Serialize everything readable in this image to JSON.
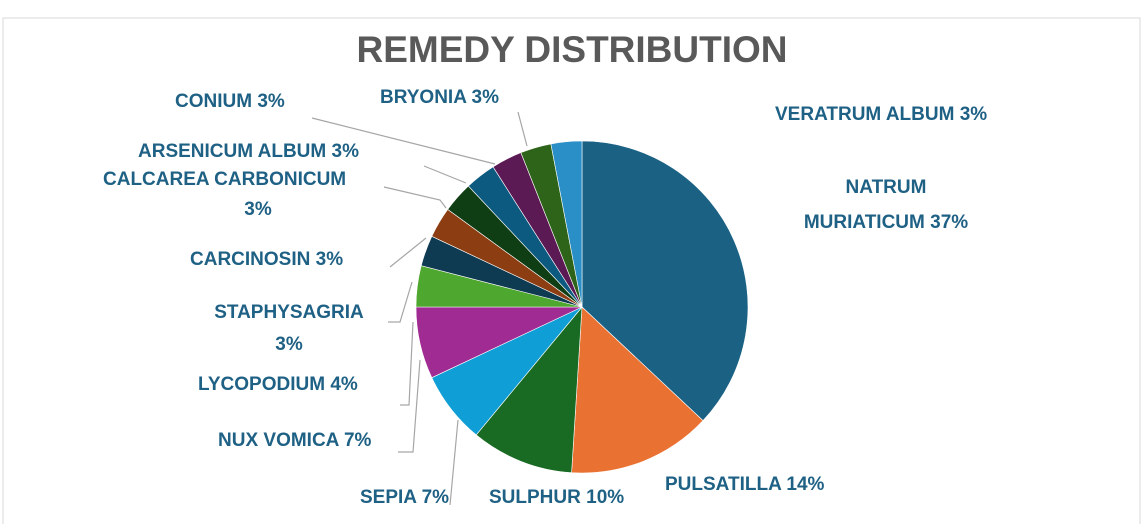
{
  "chart_data": {
    "type": "pie",
    "title": "REMEDY DISTRIBUTION",
    "categories": [
      "NATRUM MURIATICUM",
      "PULSATILLA",
      "SULPHUR",
      "SEPIA",
      "NUX VOMICA",
      "LYCOPODIUM",
      "STAPHYSAGRIA",
      "CARCINOSIN",
      "CALCAREA CARBONICUM",
      "ARSENICUM ALBUM",
      "CONIUM",
      "BRYONIA",
      "VERATRUM ALBUM"
    ],
    "values": [
      37,
      14,
      10,
      7,
      7,
      4,
      3,
      3,
      3,
      3,
      3,
      3,
      3
    ],
    "value_labels": [
      "37%",
      "14%",
      "10%",
      "7%",
      "7%",
      "4%",
      "3%",
      "3%",
      "3%",
      "3%",
      "3%",
      "3%",
      "3%"
    ],
    "colors": [
      "#1a6184",
      "#e97132",
      "#196b24",
      "#0f9ed5",
      "#a02b93",
      "#4ea72e",
      "#0e3a52",
      "#8c3d12",
      "#0f3d14",
      "#0d5a80",
      "#5c1a55",
      "#2e6419",
      "#2b8fc7"
    ]
  }
}
